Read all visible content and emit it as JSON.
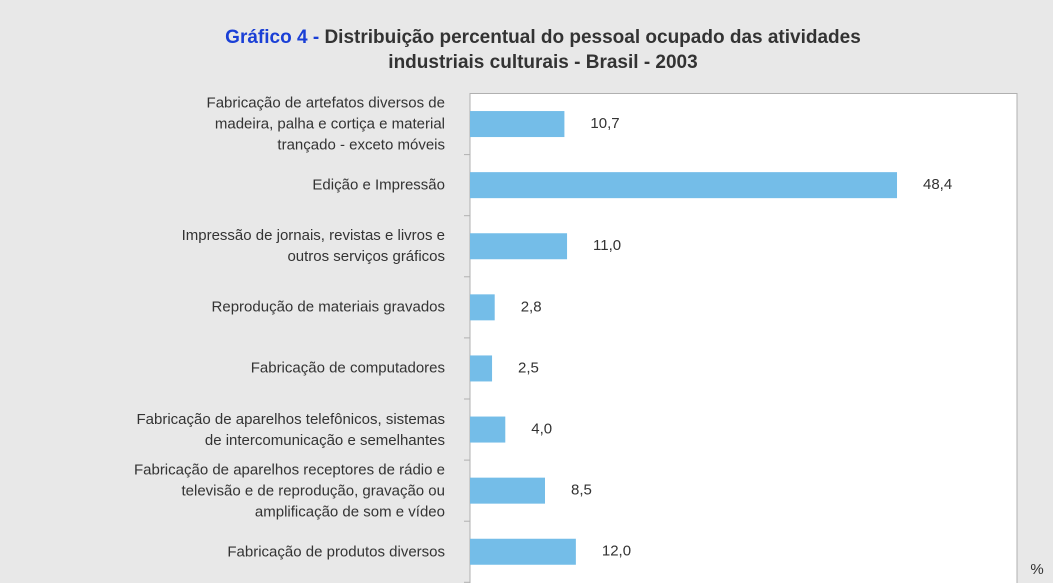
{
  "chart_data": {
    "type": "bar",
    "orientation": "horizontal",
    "title_label": "Gráfico 4 -",
    "title": [
      "Distribuição percentual do pessoal ocupado das atividades",
      "industriais culturais - Brasil - 2003"
    ],
    "categories": [
      "Fabricação de artefatos diversos de\nmadeira, palha e cortiça e material\ntrançado - exceto móveis",
      "Edição e Impressão",
      "Impressão de jornais, revistas e livros e\noutros serviços gráficos",
      "Reprodução de materiais gravados",
      "Fabricação de computadores",
      "Fabricação de aparelhos telefônicos, sistemas\nde intercomunicação e semelhantes",
      "Fabricação de aparelhos receptores de rádio e\ntelevisão e de reprodução, gravação ou\namplificação de som e vídeo",
      "Fabricação de produtos diversos"
    ],
    "values": [
      10.7,
      48.4,
      11.0,
      2.8,
      2.5,
      4.0,
      8.5,
      12.0
    ],
    "value_labels": [
      "10,7",
      "48,4",
      "11,0",
      "2,8",
      "2,5",
      "4,0",
      "8,5",
      "12,0"
    ],
    "color": "#74bde8",
    "xlim": [
      0,
      62
    ],
    "x_axis_label": "%"
  }
}
